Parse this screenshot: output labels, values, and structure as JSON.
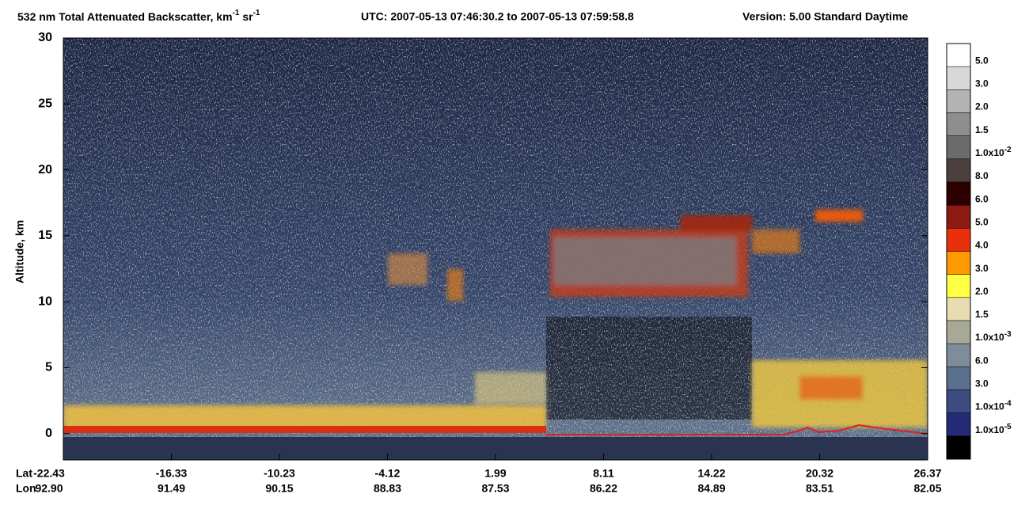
{
  "chart_data": {
    "type": "heatmap",
    "title": "532 nm Total Attenuated Backscatter, km",
    "title_sup_1": "-1",
    "title_unit_2": "sr",
    "title_sup_2": "-1",
    "time_range": "UTC:  2007-05-13 07:46:30.2  to  2007-05-13 07:59:58.8",
    "version": "Version: 5.00  Standard  Daytime",
    "y_label": "Altitude, km",
    "ylim": [
      -2,
      30
    ],
    "yticks": [
      0,
      5,
      10,
      15,
      20,
      25,
      30
    ],
    "x_row_labels": [
      "Lat",
      "Lon"
    ],
    "lat": [
      "-22.43",
      "-16.33",
      "-10.23",
      "-4.12",
      "1.99",
      "8.11",
      "14.22",
      "20.32",
      "26.37"
    ],
    "lon": [
      "92.90",
      "91.49",
      "90.15",
      "88.83",
      "87.53",
      "86.22",
      "84.89",
      "83.51",
      "82.05"
    ],
    "colorbar": {
      "colors": [
        "#ffffff",
        "#d8d8d8",
        "#b3b3b3",
        "#8e8e8e",
        "#6b6b6b",
        "#4b403d",
        "#2d0000",
        "#8a1a12",
        "#e8300d",
        "#ff9900",
        "#ffff44",
        "#e8dcb0",
        "#a8a898",
        "#7e8c9c",
        "#5a6e8e",
        "#3c4c80",
        "#252a78",
        "#000000"
      ],
      "labels": [
        "5.0",
        "3.0",
        "2.0",
        "1.5",
        {
          "text": "1.0x10",
          "sup": "-2"
        },
        "8.0",
        "6.0",
        "5.0",
        "4.0",
        "3.0",
        "2.0",
        "1.5",
        {
          "text": "1.0x10",
          "sup": "-3"
        },
        "6.0",
        "3.0",
        {
          "text": "1.0x10",
          "sup": "-4"
        },
        {
          "text": "1.0x10",
          "sup": "-5"
        }
      ]
    }
  }
}
